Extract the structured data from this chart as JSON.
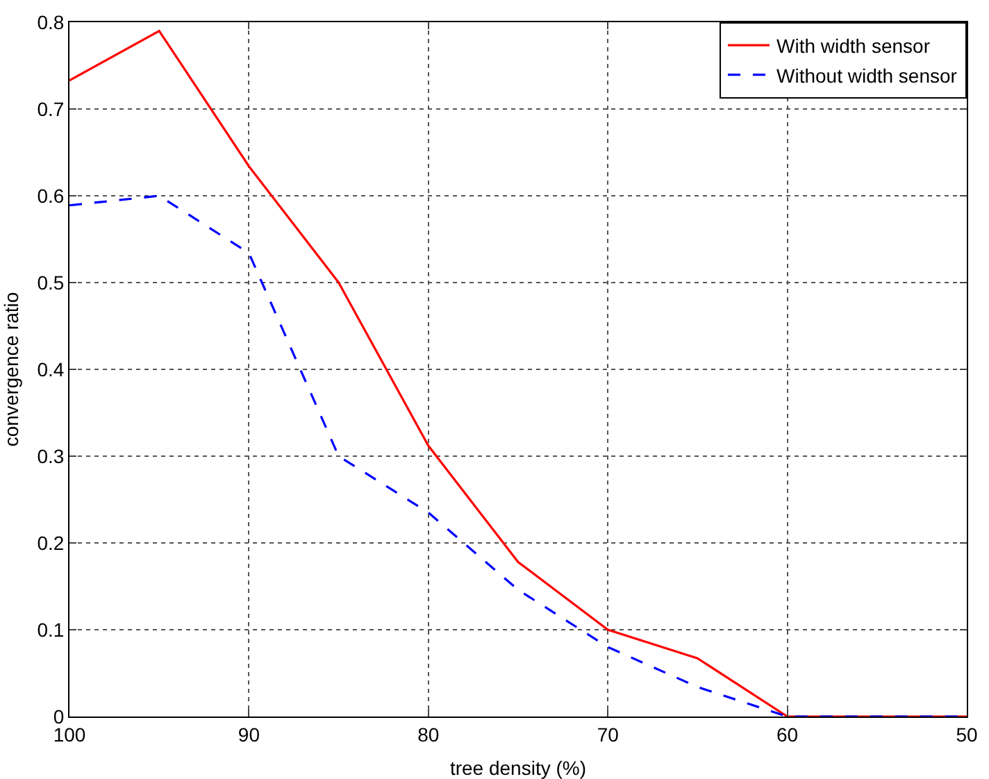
{
  "chart_data": {
    "type": "line",
    "xlabel": "tree density (%)",
    "ylabel": "convergence ratio",
    "x": [
      100,
      95,
      90,
      85,
      80,
      75,
      70,
      65,
      60,
      55,
      50
    ],
    "series": [
      {
        "name": "With width sensor",
        "color": "#ff0000",
        "line_style": "solid",
        "values": [
          0.733,
          0.79,
          0.634,
          0.5,
          0.312,
          0.178,
          0.1,
          0.067,
          0,
          0,
          0
        ]
      },
      {
        "name": "Without width sensor",
        "color": "#0000ff",
        "line_style": "dashed",
        "values": [
          0.589,
          0.6,
          0.534,
          0.3,
          0.235,
          0.146,
          0.08,
          0.034,
          0,
          0,
          0
        ]
      }
    ],
    "xlim": [
      100,
      50
    ],
    "xticks": [
      100,
      90,
      80,
      70,
      60,
      50
    ],
    "ylim": [
      0,
      0.8
    ],
    "yticks": [
      0,
      0.1,
      0.2,
      0.3,
      0.4,
      0.5,
      0.6,
      0.7,
      0.8
    ],
    "grid": true,
    "legend": "top right",
    "marker": "none"
  }
}
